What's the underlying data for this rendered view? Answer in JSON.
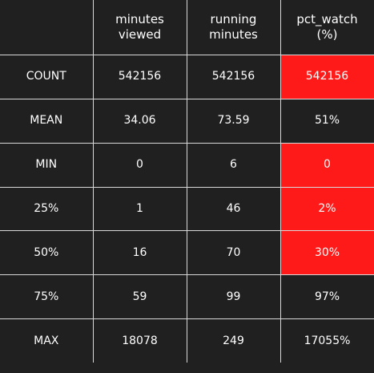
{
  "colors": {
    "background": "#202020",
    "grid_line": "#d8d8d8",
    "text": "#ffffff",
    "highlight": "#ff1a1a"
  },
  "columns": [
    {
      "label_line1": "minutes",
      "label_line2": "viewed"
    },
    {
      "label_line1": "running",
      "label_line2": "minutes"
    },
    {
      "label_line1": "pct_watch",
      "label_line2": "(%)"
    }
  ],
  "rows": [
    {
      "label": "COUNT",
      "values": [
        "542156",
        "542156",
        "542156"
      ],
      "highlighted": [
        false,
        false,
        true
      ]
    },
    {
      "label": "MEAN",
      "values": [
        "34.06",
        "73.59",
        "51%"
      ],
      "highlighted": [
        false,
        false,
        false
      ]
    },
    {
      "label": "MIN",
      "values": [
        "0",
        "6",
        "0"
      ],
      "highlighted": [
        false,
        false,
        true
      ]
    },
    {
      "label": "25%",
      "values": [
        "1",
        "46",
        "2%"
      ],
      "highlighted": [
        false,
        false,
        true
      ]
    },
    {
      "label": "50%",
      "values": [
        "16",
        "70",
        "30%"
      ],
      "highlighted": [
        false,
        false,
        true
      ]
    },
    {
      "label": "75%",
      "values": [
        "59",
        "99",
        "97%"
      ],
      "highlighted": [
        false,
        false,
        false
      ]
    },
    {
      "label": "MAX",
      "values": [
        "18078",
        "249",
        "17055%"
      ],
      "highlighted": [
        false,
        false,
        false
      ]
    }
  ]
}
